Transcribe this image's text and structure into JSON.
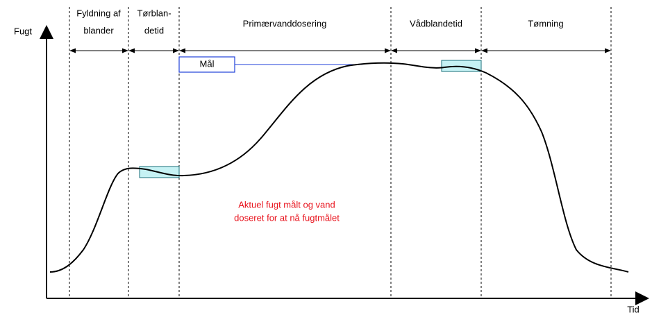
{
  "axes": {
    "y_label": "Fugt",
    "x_label": "Tid"
  },
  "phases": [
    {
      "label": [
        "Fyldning af",
        "blander"
      ]
    },
    {
      "label": [
        "Tørblan-",
        "detid"
      ]
    },
    {
      "label": [
        "Primærvanddosering"
      ]
    },
    {
      "label": [
        "Vådblandetid"
      ]
    },
    {
      "label": [
        "Tømning"
      ]
    }
  ],
  "target": {
    "label": "Mål"
  },
  "annotation": [
    "Aktuel fugt målt og vand",
    "doseret for at nå fugtmålet"
  ]
}
